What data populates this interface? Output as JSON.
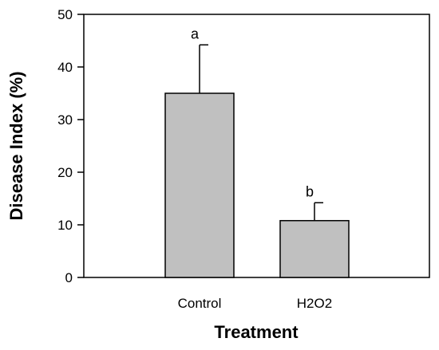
{
  "chart_data": {
    "type": "bar",
    "title": "",
    "xlabel": "Treatment",
    "ylabel": "Disease Index (%)",
    "categories": [
      "Control",
      "H2O2"
    ],
    "values": [
      35,
      10.8
    ],
    "errors": [
      9.2,
      3.4
    ],
    "significance": [
      "a",
      "b"
    ],
    "ylim": [
      0,
      50
    ],
    "yticks": [
      "0",
      "10",
      "20",
      "30",
      "40",
      "50"
    ],
    "grid": false,
    "legend": "none",
    "colors": {
      "bar_fill": "#c0c0c0",
      "bar_stroke": "#000000",
      "axis": "#000000"
    }
  }
}
